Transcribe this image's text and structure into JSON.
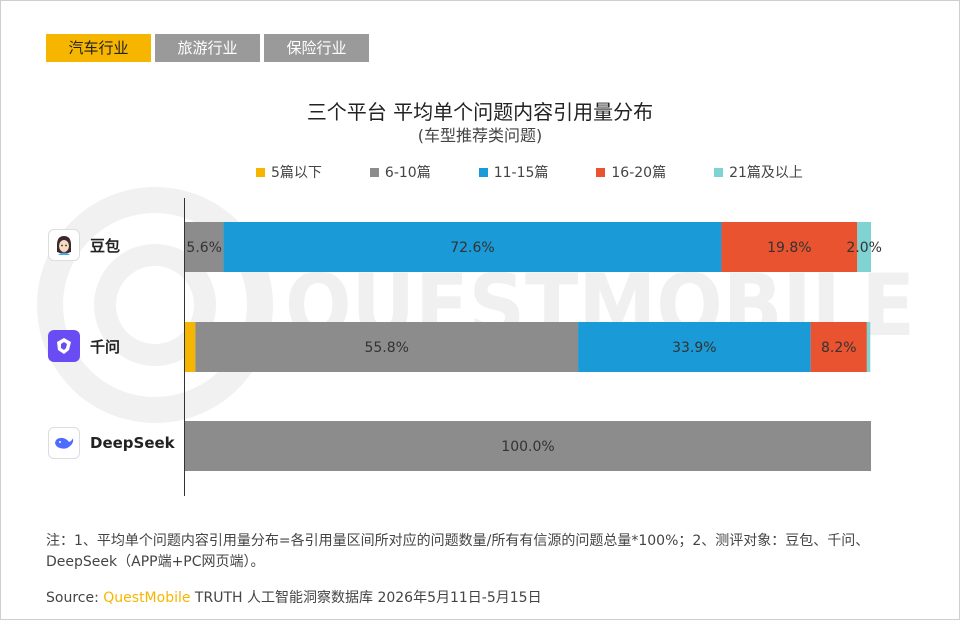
{
  "tabs": [
    {
      "label": "汽车行业",
      "active": true
    },
    {
      "label": "旅游行业",
      "active": false
    },
    {
      "label": "保险行业",
      "active": false
    }
  ],
  "watermark_text": "QUESTMOBILE",
  "chart_data": {
    "type": "bar",
    "orientation": "horizontal",
    "stacked": true,
    "title": "三个平台 平均单个问题内容引用量分布",
    "subtitle": "(车型推荐类问题)",
    "categories": [
      "豆包",
      "千问",
      "DeepSeek"
    ],
    "xlim": [
      0,
      100
    ],
    "legend_position": "top",
    "series": [
      {
        "name": "5篇以下",
        "color": "#f6b600",
        "values": [
          0.0,
          1.5,
          0.0
        ],
        "labels": [
          "",
          "",
          ""
        ]
      },
      {
        "name": "6-10篇",
        "color": "#8c8c8c",
        "values": [
          5.6,
          55.8,
          100.0
        ],
        "labels": [
          "5.6%",
          "55.8%",
          "100.0%"
        ]
      },
      {
        "name": "11-15篇",
        "color": "#1a9ad6",
        "values": [
          72.6,
          33.9,
          0.0
        ],
        "labels": [
          "72.6%",
          "33.9%",
          ""
        ]
      },
      {
        "name": "16-20篇",
        "color": "#e9532f",
        "values": [
          19.8,
          8.2,
          0.0
        ],
        "labels": [
          "19.8%",
          "8.2%",
          ""
        ]
      },
      {
        "name": "21篇及以上",
        "color": "#7fd3d3",
        "values": [
          2.0,
          0.5,
          0.0
        ],
        "labels": [
          "2.0%",
          "",
          ""
        ]
      }
    ]
  },
  "note": "注：1、平均单个问题内容引用量分布=各引用量区间所对应的问题数量/所有有信源的问题总量*100%；2、测评对象：豆包、千问、DeepSeek（APP端+PC网页端）。",
  "source": {
    "prefix": "Source:",
    "brand": "QuestMobile",
    "rest": " TRUTH 人工智能洞察数据库 2026年5月11日-5月15日"
  }
}
